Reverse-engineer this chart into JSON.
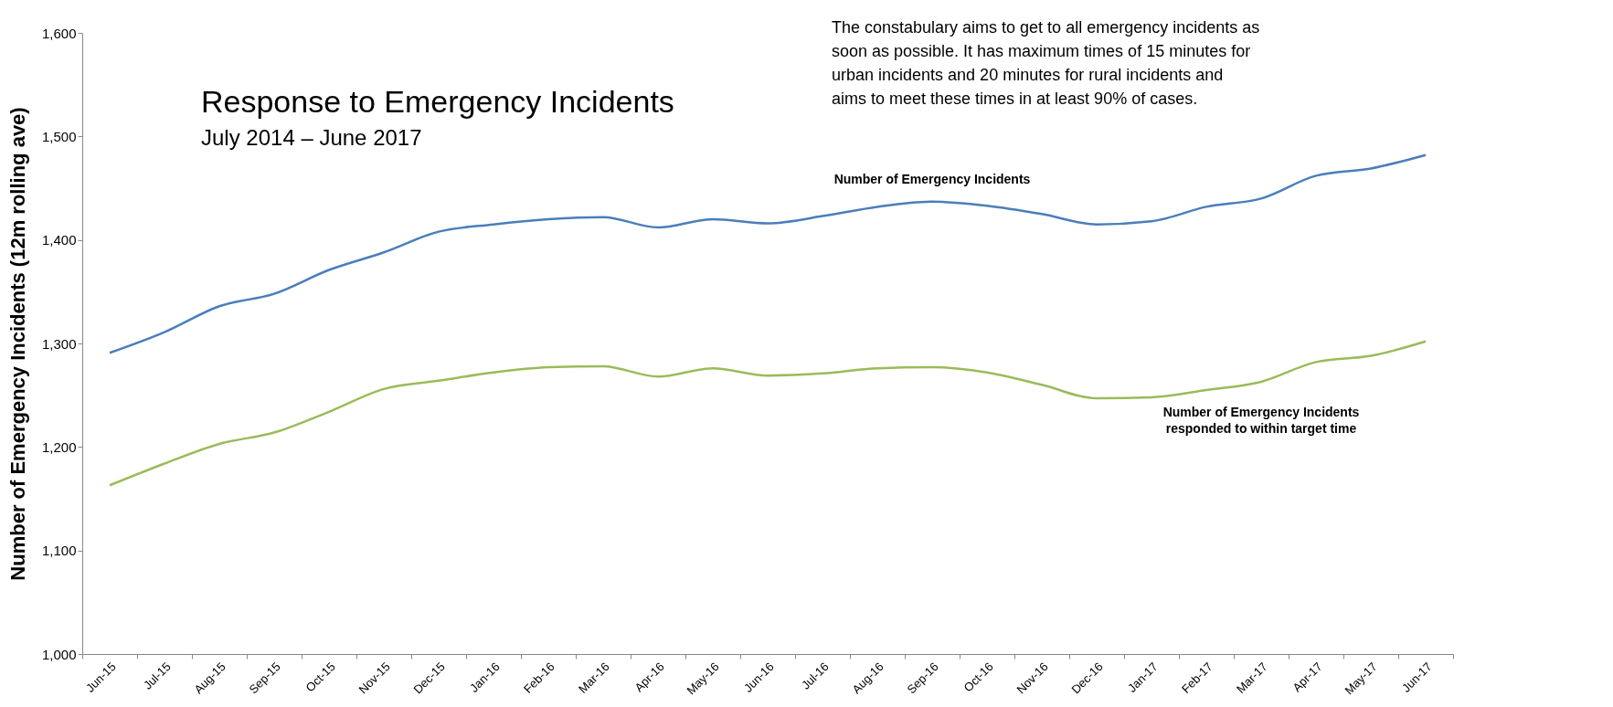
{
  "chart_data": {
    "type": "line",
    "title": "Response to Emergency Incidents",
    "subtitle": "July 2014 – June 2017",
    "ylabel": "Number of Emergency Incidents (12m rolling ave)",
    "categories": [
      "Jun-15",
      "Jul-15",
      "Aug-15",
      "Sep-15",
      "Oct-15",
      "Nov-15",
      "Dec-15",
      "Jan-16",
      "Feb-16",
      "Mar-16",
      "Apr-16",
      "May-16",
      "Jun-16",
      "Jul-16",
      "Aug-16",
      "Sep-16",
      "Oct-16",
      "Nov-16",
      "Dec-16",
      "Jan-17",
      "Feb-17",
      "Mar-17",
      "Apr-17",
      "May-17",
      "Jun-17"
    ],
    "series": [
      {
        "name": "Number of Emergency Incidents",
        "color": "#4a7ebb",
        "values": [
          1291,
          1311,
          1336,
          1348,
          1371,
          1388,
          1408,
          1415,
          1420,
          1422,
          1412,
          1420,
          1416,
          1423,
          1432,
          1437,
          1433,
          1425,
          1415,
          1418,
          1432,
          1440,
          1462,
          1469,
          1482
        ]
      },
      {
        "name": "Number of Emergency Incidents responded to within target time",
        "color": "#9bbb59",
        "values": [
          1163,
          1184,
          1203,
          1214,
          1234,
          1256,
          1264,
          1272,
          1277,
          1278,
          1268,
          1276,
          1269,
          1271,
          1276,
          1277,
          1272,
          1260,
          1247,
          1248,
          1255,
          1263,
          1282,
          1288,
          1302
        ]
      }
    ],
    "annotations": [
      "The constabulary aims to get to all emergency incidents as soon as possible. It has maximum times of 15 minutes for urban incidents and 20 minutes for rural incidents and aims to meet these times in at least 90% of cases."
    ],
    "ylim": [
      1000,
      1600
    ],
    "yticks": [
      {
        "value": 1000,
        "label": "1,000"
      },
      {
        "value": 1100,
        "label": "1,100"
      },
      {
        "value": 1200,
        "label": "1,200"
      },
      {
        "value": 1300,
        "label": "1,300"
      },
      {
        "value": 1400,
        "label": "1,400"
      },
      {
        "value": 1500,
        "label": "1,500"
      },
      {
        "value": 1600,
        "label": "1,600"
      }
    ],
    "grid": false,
    "legend": false,
    "marker": "none",
    "line_style": "solid"
  }
}
